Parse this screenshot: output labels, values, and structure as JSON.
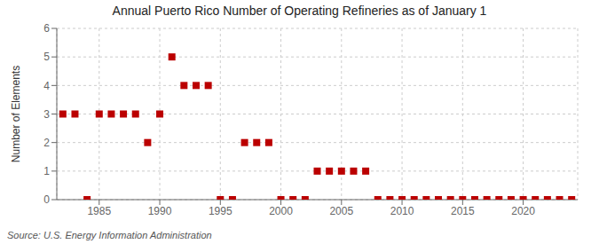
{
  "chart_data": {
    "type": "scatter",
    "title": "Annual Puerto Rico Number of Operating Refineries as of January 1",
    "ylabel": "Number of Elements",
    "annotations": [
      "Source: U.S. Energy Information Administration"
    ],
    "x": [
      1982,
      1983,
      1984,
      1985,
      1986,
      1987,
      1988,
      1989,
      1990,
      1991,
      1992,
      1993,
      1994,
      1995,
      1996,
      1997,
      1998,
      1999,
      2000,
      2001,
      2002,
      2003,
      2004,
      2005,
      2006,
      2007,
      2008,
      2009,
      2010,
      2011,
      2012,
      2013,
      2014,
      2015,
      2016,
      2017,
      2018,
      2019,
      2020,
      2021,
      2022,
      2023,
      2024
    ],
    "values": [
      3,
      3,
      0,
      3,
      3,
      3,
      3,
      2,
      3,
      5,
      4,
      4,
      4,
      0,
      0,
      2,
      2,
      2,
      0,
      0,
      0,
      1,
      1,
      1,
      1,
      1,
      0,
      0,
      0,
      0,
      0,
      0,
      0,
      0,
      0,
      0,
      0,
      0,
      0,
      0,
      0,
      0,
      0
    ],
    "color": "#bb0000",
    "marker": "square",
    "xlim": [
      1981.5,
      2024.5
    ],
    "xticks": [
      1985,
      1990,
      1995,
      2000,
      2005,
      2010,
      2015,
      2020
    ],
    "ylim": [
      0,
      6
    ],
    "yticks": [
      0,
      1,
      2,
      3,
      4,
      5,
      6
    ],
    "grid": true
  }
}
